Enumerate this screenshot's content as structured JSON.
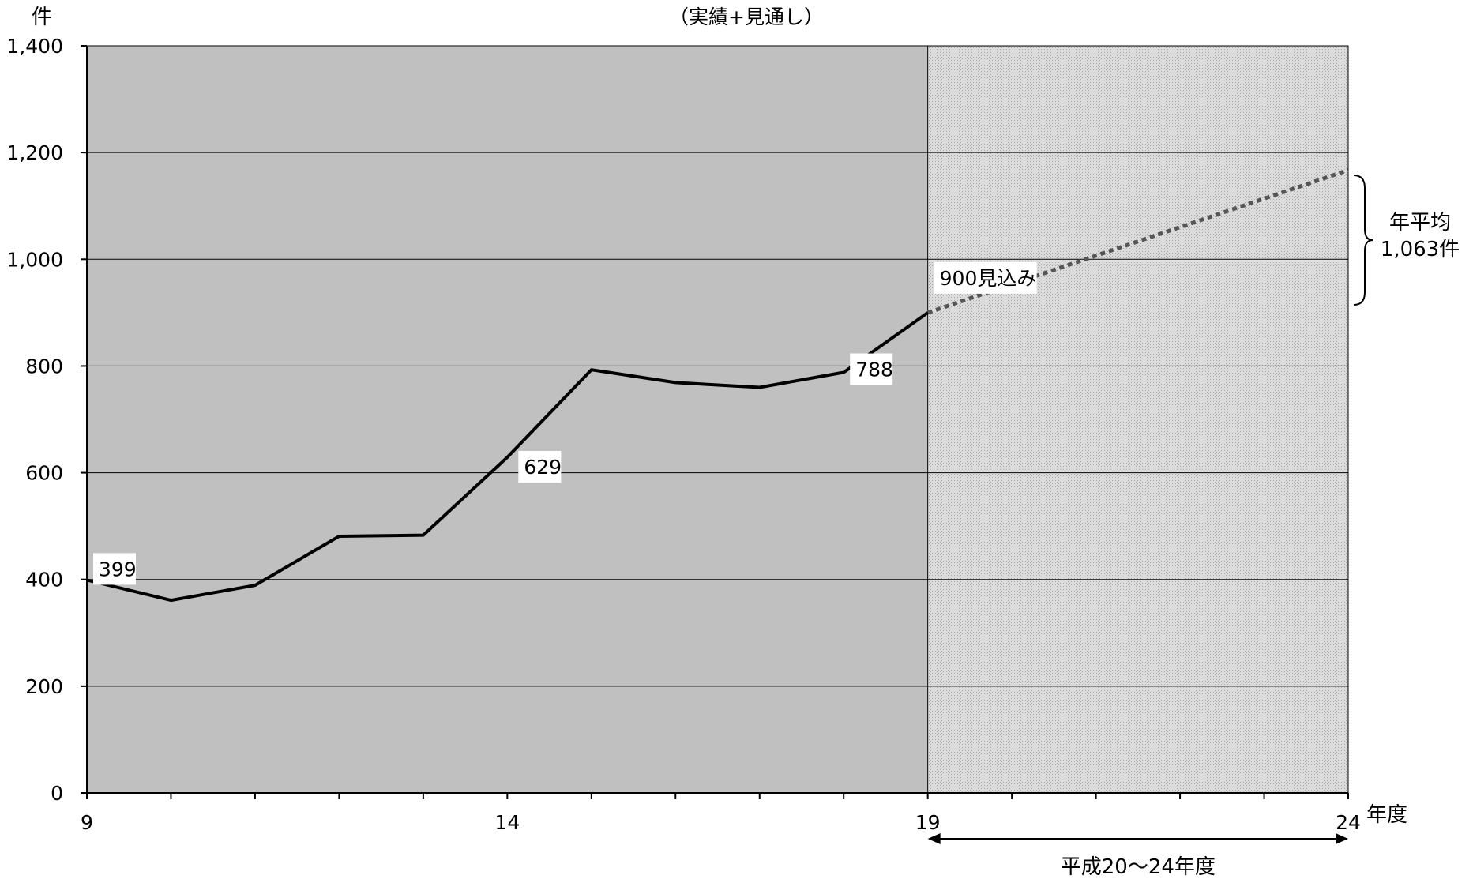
{
  "chart_data": {
    "type": "line",
    "subtitle": "（実績+見通し）",
    "ylabel": "件",
    "xlabel": "年度",
    "ylim": [
      0,
      1400
    ],
    "yticks": [
      0,
      200,
      400,
      600,
      800,
      1000,
      1200,
      1400
    ],
    "ytick_labels": [
      "0",
      "200",
      "400",
      "600",
      "800",
      "1,000",
      "1,200",
      "1,400"
    ],
    "xlim": [
      9,
      24
    ],
    "xtick_labels": [
      {
        "x": 9,
        "label": "9"
      },
      {
        "x": 14,
        "label": "14"
      },
      {
        "x": 19,
        "label": "19"
      },
      {
        "x": 24,
        "label": "24"
      }
    ],
    "grid": true,
    "series": [
      {
        "style": "solid",
        "x": [
          9,
          10,
          11,
          12,
          13,
          14,
          15,
          16,
          17,
          18,
          19
        ],
        "values": [
          399,
          361,
          389,
          481,
          483,
          629,
          793,
          769,
          760,
          788,
          900
        ]
      },
      {
        "style": "dotted",
        "x": [
          19,
          24
        ],
        "values": [
          900,
          1167
        ]
      }
    ],
    "data_labels": [
      {
        "x": 9,
        "y": 399,
        "text": "399"
      },
      {
        "x": 14,
        "y": 629,
        "text": "629"
      },
      {
        "x": 18,
        "y": 788,
        "text": "788"
      },
      {
        "x": 19,
        "y": 900,
        "text": "900見込み"
      }
    ],
    "shaded_region": {
      "x_from": 19,
      "x_to": 24
    },
    "range_label": "平成20～24年度",
    "annotation": {
      "line1": "年平均",
      "line2": "1,063件"
    }
  }
}
